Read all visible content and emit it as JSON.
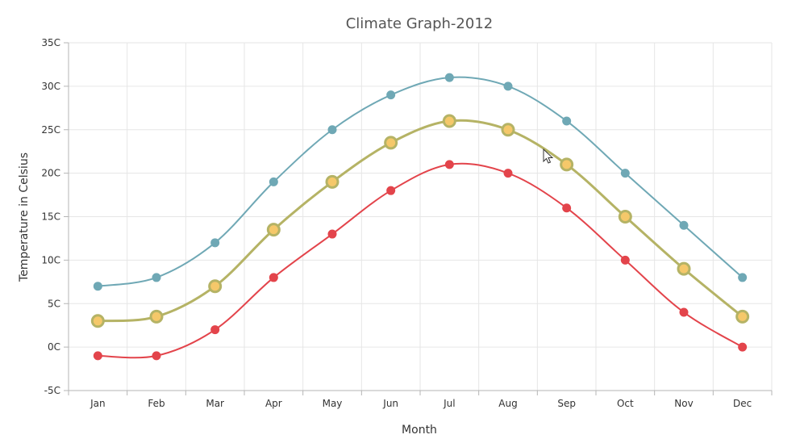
{
  "chart_data": {
    "type": "line",
    "title": "Climate Graph-2012",
    "xlabel": "Month",
    "ylabel": "Temperature in Celsius",
    "categories": [
      "Jan",
      "Feb",
      "Mar",
      "Apr",
      "May",
      "Jun",
      "Jul",
      "Aug",
      "Sep",
      "Oct",
      "Nov",
      "Dec"
    ],
    "ylim": [
      -5,
      35
    ],
    "yticks": [
      -5,
      0,
      5,
      10,
      15,
      20,
      25,
      30,
      35
    ],
    "ytick_suffix": "C",
    "grid": true,
    "legend": "none",
    "curve": "spline",
    "series": [
      {
        "values": [
          7,
          8,
          12,
          19,
          25,
          29,
          31,
          30,
          26,
          20,
          14,
          8
        ],
        "color": "#6fa8b5",
        "marker": "circle"
      },
      {
        "values": [
          3,
          3.5,
          7,
          13.5,
          19,
          23.5,
          26,
          25,
          21,
          15,
          9,
          3.5
        ],
        "color": "#b5b365",
        "marker_fill": "#f5c86a",
        "marker": "circle-large"
      },
      {
        "values": [
          -1,
          -1,
          2,
          8,
          13,
          18,
          21,
          20,
          16,
          10,
          4,
          0
        ],
        "color": "#e3444b",
        "marker": "circle"
      }
    ]
  }
}
